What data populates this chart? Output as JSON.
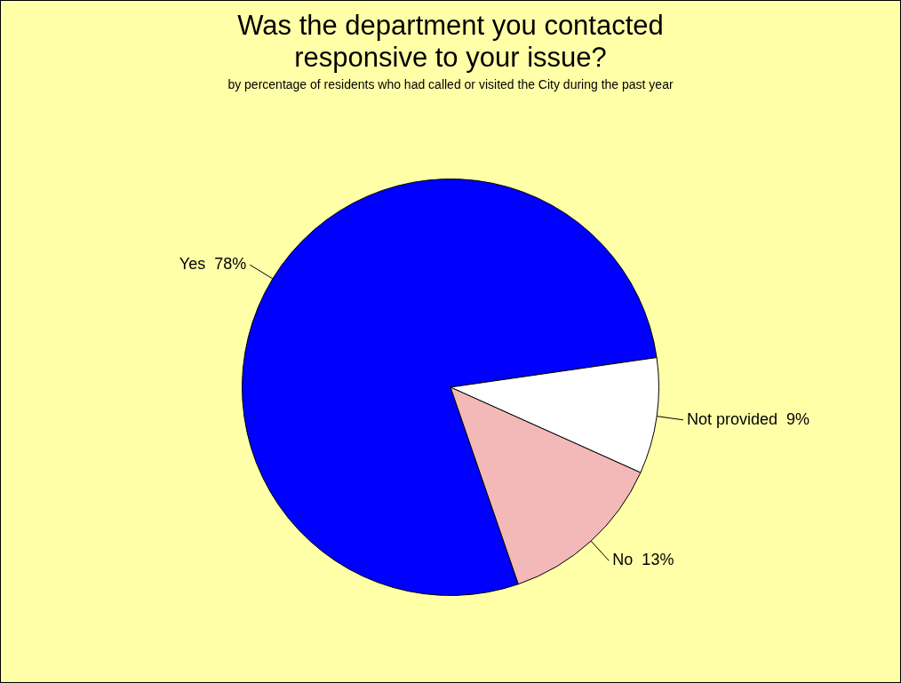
{
  "chart_data": {
    "type": "pie",
    "title": "Was the department you contacted responsive to your issue?",
    "subtitle": "by percentage of residents who had called or visited the City during the past year",
    "categories": [
      "Yes",
      "Not provided",
      "No"
    ],
    "values": [
      78,
      9,
      13
    ],
    "value_labels": [
      "78%",
      "9%",
      "13%"
    ],
    "colors": [
      "#0000ff",
      "#ffffff",
      "#f3b8b8"
    ],
    "legend": false
  }
}
